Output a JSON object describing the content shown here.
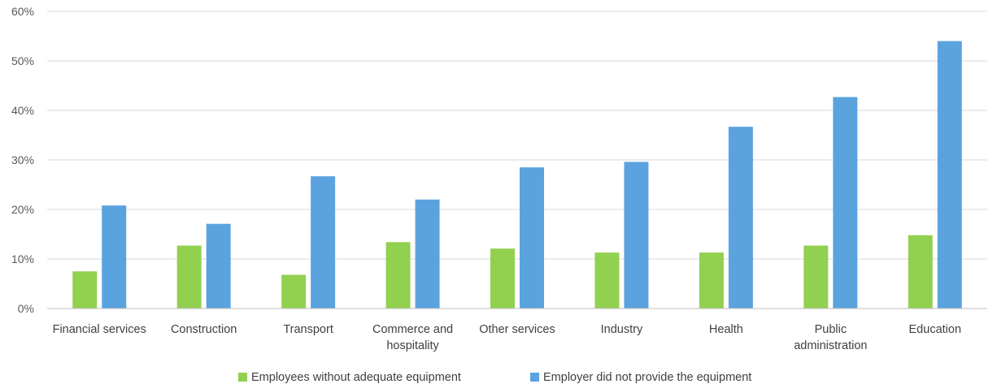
{
  "chart_data": {
    "type": "bar",
    "categories": [
      "Financial services",
      "Construction",
      "Transport",
      "Commerce and hospitality",
      "Other services",
      "Industry",
      "Health",
      "Public administration",
      "Education"
    ],
    "category_lines": [
      [
        "Financial services"
      ],
      [
        "Construction"
      ],
      [
        "Transport"
      ],
      [
        "Commerce and",
        "hospitality"
      ],
      [
        "Other services"
      ],
      [
        "Industry"
      ],
      [
        "Health"
      ],
      [
        "Public",
        "administration"
      ],
      [
        "Education"
      ]
    ],
    "series": [
      {
        "name": "Employees without adequate equipment",
        "color": "#92D050",
        "values": [
          7.5,
          12.7,
          6.8,
          13.4,
          12.1,
          11.3,
          11.3,
          12.7,
          14.8
        ]
      },
      {
        "name": "Employer did not provide the equipment",
        "color": "#5BA3DF",
        "values": [
          20.8,
          17.1,
          26.7,
          22.0,
          28.5,
          29.6,
          36.7,
          42.7,
          54.0
        ]
      }
    ],
    "ylim": [
      0,
      60
    ],
    "yticks": [
      0,
      10,
      20,
      30,
      40,
      50,
      60
    ],
    "ytick_labels": [
      "0%",
      "10%",
      "20%",
      "30%",
      "40%",
      "50%",
      "60%"
    ],
    "grid": true,
    "legend_position": "bottom",
    "title": "",
    "xlabel": "",
    "ylabel": ""
  }
}
